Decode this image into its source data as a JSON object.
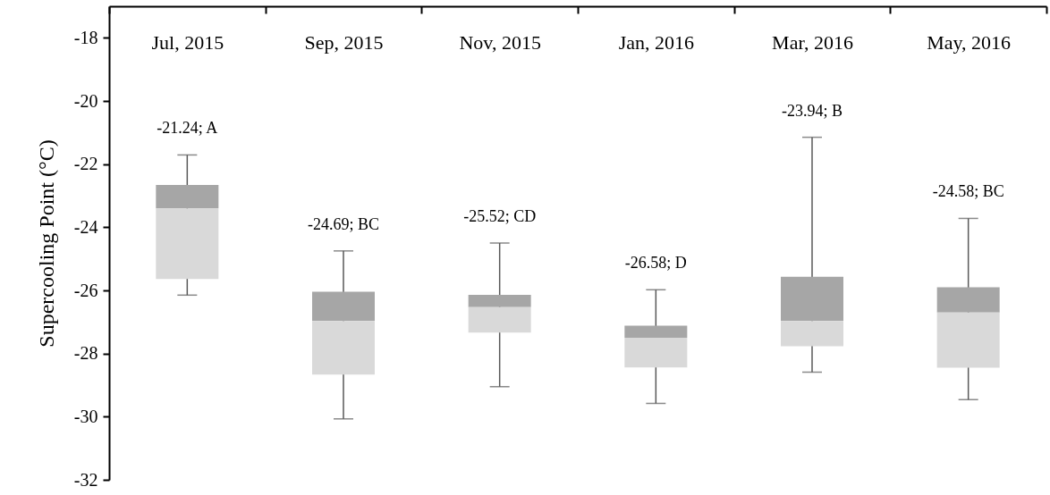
{
  "chart_data": {
    "type": "box",
    "ylabel": "Supercooling Point (°C)",
    "categories": [
      "Jul, 2015",
      "Sep, 2015",
      "Nov, 2015",
      "Jan, 2016",
      "Mar, 2016",
      "May, 2016"
    ],
    "series": [
      {
        "color": "#d9d9d9",
        "boxes": [
          {
            "low": -26.15,
            "q1": -25.64,
            "median": -23.4,
            "q3": -22.66,
            "high": -21.71
          },
          {
            "low": -30.07,
            "q1": -28.67,
            "median": -26.97,
            "q3": -26.04,
            "high": -24.75
          },
          {
            "low": -29.05,
            "q1": -27.34,
            "median": -26.53,
            "q3": -26.14,
            "high": -24.5
          },
          {
            "low": -29.58,
            "q1": -28.44,
            "median": -27.5,
            "q3": -27.12,
            "high": -25.98
          },
          {
            "low": -28.59,
            "q1": -27.77,
            "median": -26.97,
            "q3": -25.57,
            "high": -21.15
          },
          {
            "low": -29.46,
            "q1": -28.45,
            "median": -26.7,
            "q3": -25.9,
            "high": -23.72
          }
        ]
      }
    ],
    "ylim": [
      -32,
      -17
    ],
    "yticks": [
      -32,
      -30,
      -28,
      -26,
      -24,
      -22,
      -20,
      -18
    ],
    "grid": false,
    "annotations": [
      "-21.24; A",
      "-24.69; BC",
      "-25.52; CD",
      "-26.58; D",
      "-23.94; B",
      "-24.58; BC"
    ]
  }
}
